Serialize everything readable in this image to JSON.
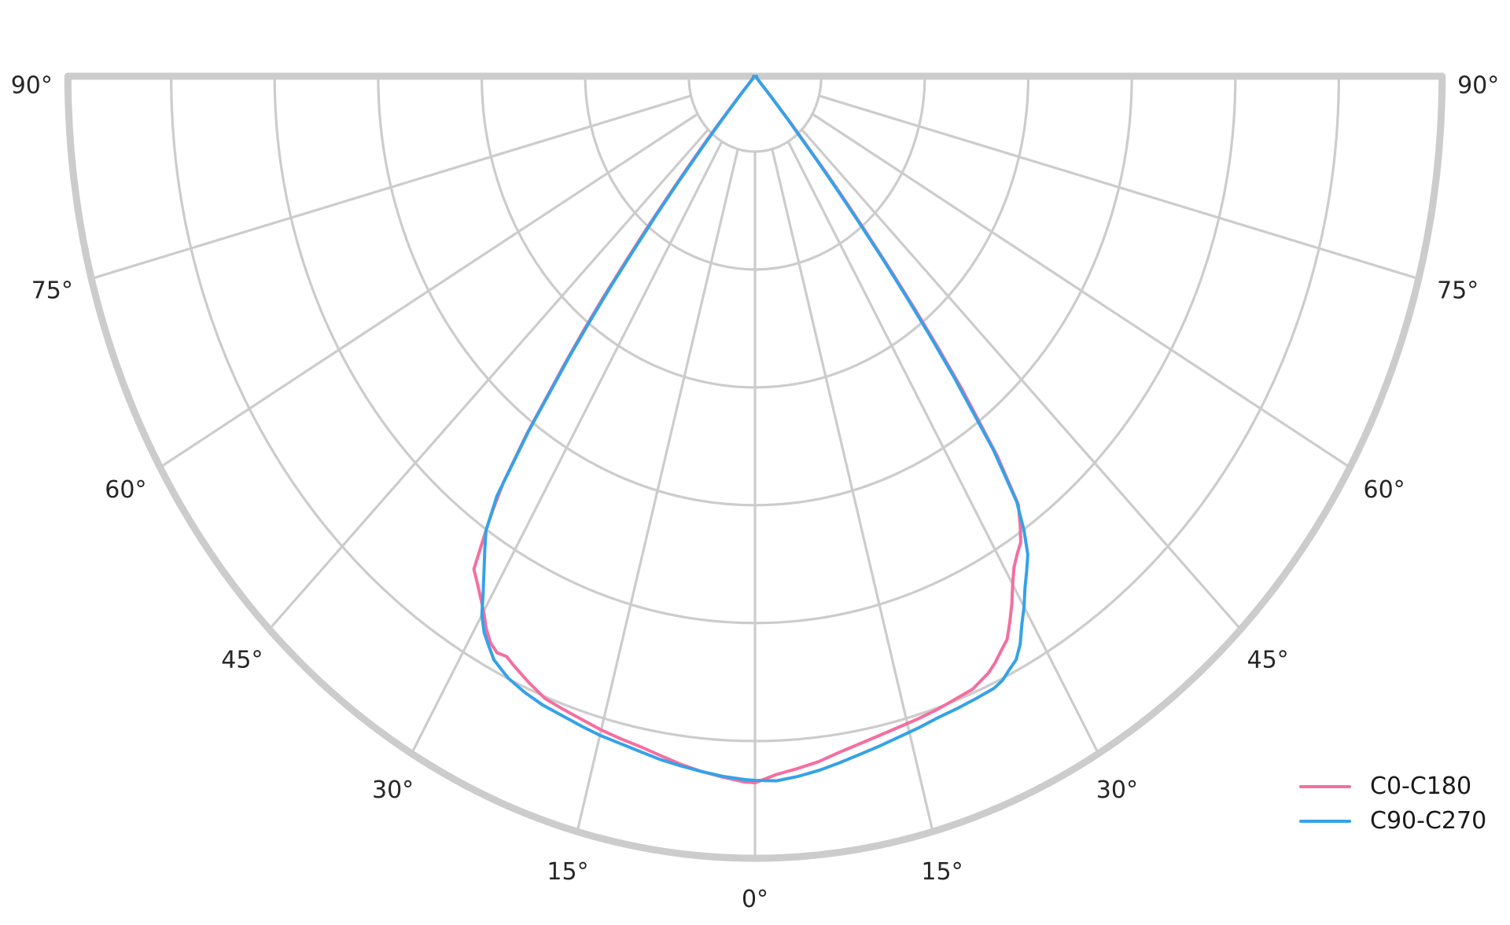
{
  "colors": {
    "background": "#ffffff",
    "grid": "#cccccc",
    "boundary": "#cccccc",
    "label_text": "#262626",
    "legend_text": "#1a1a1a",
    "series_c0": "#f56ea0",
    "series_c90": "#35a2e8"
  },
  "legend": {
    "position": "lower right",
    "entries": [
      {
        "label": "C0-C180"
      },
      {
        "label": "C90-C270"
      }
    ]
  },
  "chart_data": {
    "type": "line",
    "subtype": "polar-photometric",
    "title": "",
    "angular_axis": {
      "unit": "degrees",
      "zero_direction": "down",
      "range_deg": [
        -90,
        90
      ],
      "tick_interval_deg": 15,
      "tick_labels": [
        "0°",
        "15°",
        "30°",
        "45°",
        "60°",
        "75°",
        "90°"
      ],
      "labels_mirrored_both_sides": true
    },
    "radial_axis": {
      "normalized_max": 1.0,
      "ring_count": 7,
      "tick_labels_shown": false
    },
    "legend_position": "lower right",
    "series": [
      {
        "name": "C0-C180",
        "color": "#f56ea0",
        "points": [
          [
            -90,
            0.002
          ],
          [
            -70,
            0.002
          ],
          [
            -55,
            0.003
          ],
          [
            -48,
            0.004
          ],
          [
            -45,
            0.007
          ],
          [
            -43,
            0.014
          ],
          [
            -42,
            0.035
          ],
          [
            -41,
            0.08
          ],
          [
            -40.5,
            0.115
          ],
          [
            -40,
            0.155
          ],
          [
            -39.5,
            0.2
          ],
          [
            -39,
            0.25
          ],
          [
            -38.5,
            0.3
          ],
          [
            -38,
            0.36
          ],
          [
            -37.5,
            0.41
          ],
          [
            -37,
            0.46
          ],
          [
            -36,
            0.565
          ],
          [
            -35.2,
            0.635
          ],
          [
            -34.5,
            0.675
          ],
          [
            -34,
            0.7
          ],
          [
            -33,
            0.751
          ],
          [
            -32,
            0.763
          ],
          [
            -31,
            0.776
          ],
          [
            -30,
            0.79
          ],
          [
            -29,
            0.807
          ],
          [
            -28,
            0.82
          ],
          [
            -27,
            0.827
          ],
          [
            -26,
            0.825
          ],
          [
            -25,
            0.831
          ],
          [
            -23,
            0.842
          ],
          [
            -21,
            0.852
          ],
          [
            -19,
            0.856
          ],
          [
            -17,
            0.86
          ],
          [
            -15,
            0.865
          ],
          [
            -13,
            0.869
          ],
          [
            -11,
            0.873
          ],
          [
            -9,
            0.879
          ],
          [
            -7,
            0.886
          ],
          [
            -5,
            0.892
          ],
          [
            -3,
            0.897
          ],
          [
            -1,
            0.902
          ],
          [
            0,
            0.903
          ],
          [
            2,
            0.893
          ],
          [
            4,
            0.887
          ],
          [
            6,
            0.881
          ],
          [
            8,
            0.873
          ],
          [
            10,
            0.867
          ],
          [
            12,
            0.862
          ],
          [
            14,
            0.858
          ],
          [
            16,
            0.855
          ],
          [
            18,
            0.852
          ],
          [
            20,
            0.848
          ],
          [
            22,
            0.845
          ],
          [
            24,
            0.835
          ],
          [
            25,
            0.827
          ],
          [
            26,
            0.817
          ],
          [
            27,
            0.808
          ],
          [
            28,
            0.79
          ],
          [
            29,
            0.771
          ],
          [
            30,
            0.75
          ],
          [
            31,
            0.732
          ],
          [
            32,
            0.72
          ],
          [
            33,
            0.71
          ],
          [
            34,
            0.69
          ],
          [
            35,
            0.668
          ],
          [
            36,
            0.6
          ],
          [
            37,
            0.5
          ],
          [
            37.5,
            0.44
          ],
          [
            38,
            0.38
          ],
          [
            38.5,
            0.32
          ],
          [
            39,
            0.26
          ],
          [
            39.5,
            0.21
          ],
          [
            40,
            0.16
          ],
          [
            41,
            0.08
          ],
          [
            42,
            0.035
          ],
          [
            43,
            0.014
          ],
          [
            45,
            0.006
          ],
          [
            50,
            0.004
          ],
          [
            60,
            0.003
          ],
          [
            75,
            0.002
          ],
          [
            90,
            0.002
          ]
        ]
      },
      {
        "name": "C90-C270",
        "color": "#35a2e8",
        "points": [
          [
            -90,
            0.002
          ],
          [
            -70,
            0.002
          ],
          [
            -55,
            0.003
          ],
          [
            -48,
            0.004
          ],
          [
            -45,
            0.006
          ],
          [
            -43,
            0.012
          ],
          [
            -42,
            0.026
          ],
          [
            -41,
            0.06
          ],
          [
            -40.5,
            0.095
          ],
          [
            -40,
            0.13
          ],
          [
            -39.5,
            0.18
          ],
          [
            -39,
            0.23
          ],
          [
            -38.5,
            0.28
          ],
          [
            -38,
            0.34
          ],
          [
            -37.5,
            0.395
          ],
          [
            -37,
            0.45
          ],
          [
            -36,
            0.56
          ],
          [
            -35,
            0.655
          ],
          [
            -34,
            0.7
          ],
          [
            -33,
            0.722
          ],
          [
            -32,
            0.744
          ],
          [
            -31,
            0.768
          ],
          [
            -30,
            0.795
          ],
          [
            -29,
            0.813
          ],
          [
            -28,
            0.825
          ],
          [
            -27,
            0.837
          ],
          [
            -26,
            0.843
          ],
          [
            -25,
            0.849
          ],
          [
            -23,
            0.856
          ],
          [
            -21,
            0.861
          ],
          [
            -19,
            0.864
          ],
          [
            -17,
            0.868
          ],
          [
            -15,
            0.872
          ],
          [
            -13,
            0.875
          ],
          [
            -11,
            0.879
          ],
          [
            -9,
            0.884
          ],
          [
            -7,
            0.888
          ],
          [
            -5,
            0.892
          ],
          [
            -3,
            0.896
          ],
          [
            -1,
            0.899
          ],
          [
            0,
            0.9
          ],
          [
            2,
            0.901
          ],
          [
            4,
            0.897
          ],
          [
            6,
            0.892
          ],
          [
            8,
            0.886
          ],
          [
            10,
            0.88
          ],
          [
            12,
            0.875
          ],
          [
            14,
            0.87
          ],
          [
            16,
            0.866
          ],
          [
            18,
            0.862
          ],
          [
            20,
            0.86
          ],
          [
            22,
            0.858
          ],
          [
            24,
            0.856
          ],
          [
            25,
            0.852
          ],
          [
            26,
            0.844
          ],
          [
            27,
            0.837
          ],
          [
            28,
            0.822
          ],
          [
            29,
            0.801
          ],
          [
            30,
            0.783
          ],
          [
            31,
            0.763
          ],
          [
            32,
            0.746
          ],
          [
            33,
            0.729
          ],
          [
            34,
            0.7
          ],
          [
            35,
            0.664
          ],
          [
            36,
            0.59
          ],
          [
            37,
            0.48
          ],
          [
            37.5,
            0.42
          ],
          [
            38,
            0.36
          ],
          [
            38.5,
            0.3
          ],
          [
            39,
            0.24
          ],
          [
            39.5,
            0.19
          ],
          [
            40,
            0.14
          ],
          [
            41,
            0.07
          ],
          [
            42,
            0.03
          ],
          [
            43,
            0.013
          ],
          [
            45,
            0.006
          ],
          [
            50,
            0.004
          ],
          [
            60,
            0.003
          ],
          [
            75,
            0.002
          ],
          [
            90,
            0.002
          ]
        ]
      }
    ]
  }
}
